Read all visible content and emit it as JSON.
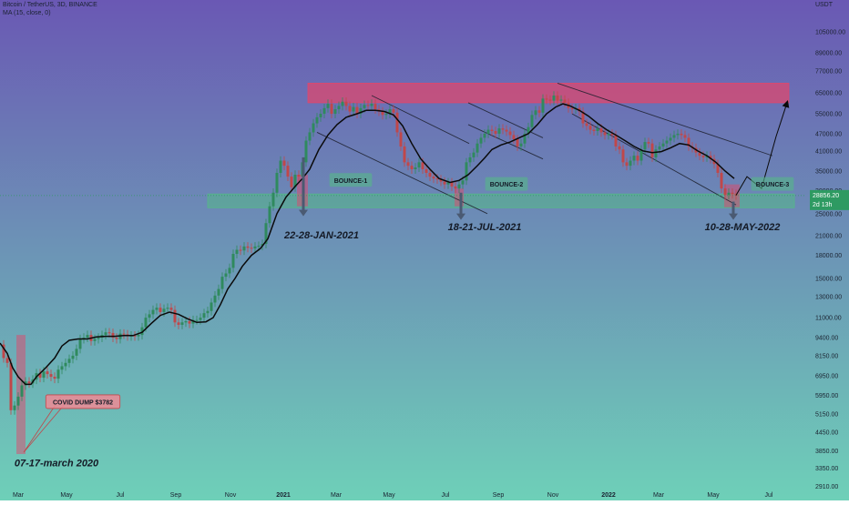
{
  "header": {
    "symbol_line": "Bitcoin / TetherUS, 3D, BINANCE",
    "indicator_line": "MA (15, close, 0)",
    "currency": "USDT"
  },
  "colors": {
    "bg_top": "#6a58b4",
    "bg_bottom": "#6ed0b8",
    "up_candle": "#2f8a5e",
    "down_candle": "#c0474a",
    "ma_line": "#0a0a0a",
    "resistance_zone": "#e0476c",
    "support_zone": "#55b888",
    "price_tag_bg": "#2e9a62",
    "annotation_text": "#141a26"
  },
  "chart_data": {
    "type": "candlestick",
    "yscale": "log",
    "ylim": [
      2600,
      135000
    ],
    "y_ticks": [
      "105000.00",
      "89000.00",
      "77000.00",
      "65000.00",
      "55000.00",
      "47000.00",
      "41000.00",
      "35000.00",
      "30000.00",
      "25000.00",
      "21000.00",
      "18000.00",
      "15000.00",
      "13000.00",
      "11000.00",
      "9400.00",
      "8150.00",
      "6950.00",
      "5950.00",
      "5150.00",
      "4450.00",
      "3850.00",
      "3350.00",
      "2910.00"
    ],
    "x_ticks": [
      "Mar",
      "May",
      "Jul",
      "Sep",
      "Nov",
      "2021",
      "Mar",
      "May",
      "Jul",
      "Sep",
      "Nov",
      "2022",
      "Mar",
      "May",
      "Jul"
    ],
    "price_close": [
      [
        0,
        8900
      ],
      [
        4,
        8000
      ],
      [
        8,
        7700
      ],
      [
        12,
        5300
      ],
      [
        16,
        5500
      ],
      [
        20,
        5900
      ],
      [
        24,
        6450
      ],
      [
        28,
        6650
      ],
      [
        32,
        6550
      ],
      [
        36,
        6750
      ],
      [
        40,
        7100
      ],
      [
        44,
        6850
      ],
      [
        48,
        7200
      ],
      [
        52,
        7050
      ],
      [
        56,
        6900
      ],
      [
        60,
        6800
      ],
      [
        64,
        7300
      ],
      [
        68,
        7500
      ],
      [
        72,
        7700
      ],
      [
        76,
        7950
      ],
      [
        80,
        8150
      ],
      [
        84,
        8600
      ],
      [
        88,
        9300
      ],
      [
        92,
        9400
      ],
      [
        96,
        9600
      ],
      [
        100,
        9150
      ],
      [
        104,
        9300
      ],
      [
        108,
        9400
      ],
      [
        112,
        9600
      ],
      [
        116,
        9800
      ],
      [
        120,
        9750
      ],
      [
        124,
        9400
      ],
      [
        128,
        9300
      ],
      [
        132,
        9700
      ],
      [
        136,
        9650
      ],
      [
        140,
        9500
      ],
      [
        144,
        9550
      ],
      [
        148,
        9500
      ],
      [
        152,
        9600
      ],
      [
        156,
        10200
      ],
      [
        160,
        11000
      ],
      [
        164,
        11300
      ],
      [
        168,
        11700
      ],
      [
        172,
        11900
      ],
      [
        176,
        11500
      ],
      [
        180,
        11800
      ],
      [
        184,
        11900
      ],
      [
        188,
        11700
      ],
      [
        192,
        10600
      ],
      [
        196,
        10400
      ],
      [
        200,
        10600
      ],
      [
        204,
        10700
      ],
      [
        208,
        10500
      ],
      [
        212,
        10800
      ],
      [
        216,
        10800
      ],
      [
        220,
        11000
      ],
      [
        224,
        11400
      ],
      [
        228,
        11600
      ],
      [
        232,
        12400
      ],
      [
        236,
        13100
      ],
      [
        240,
        13800
      ],
      [
        244,
        15200
      ],
      [
        248,
        15600
      ],
      [
        252,
        16300
      ],
      [
        256,
        18200
      ],
      [
        260,
        18800
      ],
      [
        264,
        18700
      ],
      [
        268,
        19300
      ],
      [
        272,
        19100
      ],
      [
        276,
        19000
      ],
      [
        280,
        19300
      ],
      [
        284,
        19400
      ],
      [
        288,
        19700
      ],
      [
        292,
        23200
      ],
      [
        296,
        26500
      ],
      [
        300,
        29500
      ],
      [
        304,
        34500
      ],
      [
        308,
        38000
      ],
      [
        312,
        36500
      ],
      [
        316,
        33500
      ],
      [
        320,
        30800
      ],
      [
        324,
        34000
      ],
      [
        328,
        33500
      ],
      [
        332,
        37500
      ],
      [
        336,
        44500
      ],
      [
        340,
        47500
      ],
      [
        344,
        51000
      ],
      [
        348,
        53500
      ],
      [
        352,
        55000
      ],
      [
        356,
        57500
      ],
      [
        360,
        59500
      ],
      [
        364,
        55000
      ],
      [
        368,
        57000
      ],
      [
        372,
        58500
      ],
      [
        376,
        60500
      ],
      [
        380,
        58500
      ],
      [
        384,
        56000
      ],
      [
        388,
        58000
      ],
      [
        392,
        55000
      ],
      [
        396,
        57500
      ],
      [
        400,
        59000
      ],
      [
        404,
        58500
      ],
      [
        408,
        59500
      ],
      [
        412,
        57000
      ],
      [
        416,
        56000
      ],
      [
        420,
        54500
      ],
      [
        424,
        55000
      ],
      [
        428,
        57000
      ],
      [
        432,
        55500
      ],
      [
        436,
        47500
      ],
      [
        440,
        42500
      ],
      [
        444,
        37500
      ],
      [
        448,
        36500
      ],
      [
        452,
        35500
      ],
      [
        456,
        36000
      ],
      [
        460,
        37500
      ],
      [
        464,
        35500
      ],
      [
        468,
        34500
      ],
      [
        472,
        33500
      ],
      [
        476,
        33000
      ],
      [
        480,
        32800
      ],
      [
        484,
        32200
      ],
      [
        488,
        31500
      ],
      [
        492,
        32000
      ],
      [
        496,
        31000
      ],
      [
        500,
        30500
      ],
      [
        504,
        31500
      ],
      [
        508,
        32500
      ],
      [
        512,
        37500
      ],
      [
        516,
        39000
      ],
      [
        520,
        40500
      ],
      [
        524,
        43500
      ],
      [
        528,
        45500
      ],
      [
        532,
        47000
      ],
      [
        536,
        48500
      ],
      [
        540,
        48000
      ],
      [
        544,
        47000
      ],
      [
        548,
        49000
      ],
      [
        552,
        48500
      ],
      [
        556,
        47800
      ],
      [
        560,
        46500
      ],
      [
        564,
        45000
      ],
      [
        568,
        42500
      ],
      [
        572,
        43500
      ],
      [
        576,
        47000
      ],
      [
        580,
        49500
      ],
      [
        584,
        54500
      ],
      [
        588,
        56500
      ],
      [
        592,
        55500
      ],
      [
        596,
        62000
      ],
      [
        600,
        61500
      ],
      [
        604,
        61000
      ],
      [
        608,
        63500
      ],
      [
        612,
        61000
      ],
      [
        616,
        61500
      ],
      [
        620,
        60000
      ],
      [
        624,
        57500
      ],
      [
        628,
        57000
      ],
      [
        632,
        57500
      ],
      [
        636,
        56000
      ],
      [
        640,
        51000
      ],
      [
        644,
        50000
      ],
      [
        648,
        48500
      ],
      [
        652,
        48000
      ],
      [
        656,
        49000
      ],
      [
        660,
        47500
      ],
      [
        664,
        46500
      ],
      [
        668,
        47000
      ],
      [
        672,
        46500
      ],
      [
        676,
        42500
      ],
      [
        680,
        41500
      ],
      [
        684,
        37500
      ],
      [
        688,
        36500
      ],
      [
        692,
        38000
      ],
      [
        696,
        39500
      ],
      [
        700,
        38000
      ],
      [
        704,
        41500
      ],
      [
        708,
        44000
      ],
      [
        712,
        43500
      ],
      [
        716,
        39000
      ],
      [
        720,
        41500
      ],
      [
        724,
        42500
      ],
      [
        728,
        43500
      ],
      [
        732,
        44500
      ],
      [
        736,
        45500
      ],
      [
        740,
        46500
      ],
      [
        744,
        47000
      ],
      [
        748,
        46500
      ],
      [
        752,
        45500
      ],
      [
        756,
        42500
      ],
      [
        760,
        42000
      ],
      [
        764,
        40500
      ],
      [
        768,
        39500
      ],
      [
        772,
        39000
      ],
      [
        776,
        39500
      ],
      [
        780,
        38500
      ],
      [
        784,
        37000
      ],
      [
        788,
        34500
      ],
      [
        792,
        30500
      ],
      [
        796,
        29000
      ],
      [
        800,
        29500
      ],
      [
        804,
        29200
      ],
      [
        808,
        28900
      ]
    ],
    "ma15": [
      [
        0,
        9000
      ],
      [
        8,
        8300
      ],
      [
        14,
        7400
      ],
      [
        20,
        6900
      ],
      [
        28,
        6500
      ],
      [
        34,
        6500
      ],
      [
        40,
        6900
      ],
      [
        50,
        7400
      ],
      [
        60,
        8000
      ],
      [
        68,
        8800
      ],
      [
        76,
        9200
      ],
      [
        86,
        9300
      ],
      [
        96,
        9300
      ],
      [
        106,
        9450
      ],
      [
        116,
        9500
      ],
      [
        126,
        9500
      ],
      [
        136,
        9550
      ],
      [
        146,
        9550
      ],
      [
        156,
        9800
      ],
      [
        166,
        10500
      ],
      [
        176,
        11200
      ],
      [
        186,
        11500
      ],
      [
        196,
        11300
      ],
      [
        206,
        10900
      ],
      [
        216,
        10600
      ],
      [
        226,
        10650
      ],
      [
        234,
        11000
      ],
      [
        242,
        12200
      ],
      [
        250,
        13800
      ],
      [
        258,
        15000
      ],
      [
        266,
        16500
      ],
      [
        276,
        18000
      ],
      [
        286,
        19000
      ],
      [
        294,
        20500
      ],
      [
        304,
        25000
      ],
      [
        314,
        28500
      ],
      [
        324,
        31000
      ],
      [
        332,
        33000
      ],
      [
        340,
        35500
      ],
      [
        350,
        41500
      ],
      [
        360,
        46500
      ],
      [
        370,
        50500
      ],
      [
        380,
        53500
      ],
      [
        392,
        55000
      ],
      [
        402,
        56500
      ],
      [
        412,
        56500
      ],
      [
        422,
        56000
      ],
      [
        432,
        54500
      ],
      [
        442,
        50000
      ],
      [
        452,
        43500
      ],
      [
        462,
        38500
      ],
      [
        472,
        35500
      ],
      [
        482,
        33000
      ],
      [
        494,
        32000
      ],
      [
        504,
        32500
      ],
      [
        514,
        34000
      ],
      [
        524,
        36500
      ],
      [
        532,
        38800
      ],
      [
        540,
        41500
      ],
      [
        550,
        43000
      ],
      [
        560,
        44000
      ],
      [
        570,
        45500
      ],
      [
        580,
        47000
      ],
      [
        590,
        50500
      ],
      [
        600,
        55000
      ],
      [
        610,
        58000
      ],
      [
        618,
        59500
      ],
      [
        626,
        58500
      ],
      [
        636,
        56500
      ],
      [
        646,
        54000
      ],
      [
        656,
        51000
      ],
      [
        666,
        48500
      ],
      [
        676,
        46500
      ],
      [
        686,
        44500
      ],
      [
        696,
        42500
      ],
      [
        706,
        41000
      ],
      [
        716,
        40500
      ],
      [
        726,
        40800
      ],
      [
        736,
        42000
      ],
      [
        746,
        43500
      ],
      [
        756,
        43000
      ],
      [
        766,
        41000
      ],
      [
        776,
        39500
      ],
      [
        786,
        37500
      ],
      [
        796,
        35000
      ],
      [
        806,
        33000
      ]
    ],
    "projection_arrow": [
      [
        808,
        28900
      ],
      [
        820,
        33500
      ],
      [
        836,
        30500
      ],
      [
        852,
        46000
      ],
      [
        864,
        60000
      ]
    ],
    "zones": [
      {
        "kind": "resistance",
        "x": [
          338,
          866
        ],
        "y": [
          60000,
          70000
        ]
      },
      {
        "kind": "support",
        "x": [
          228,
          872
        ],
        "y": [
          26200,
          29200
        ]
      }
    ],
    "channels": [
      {
        "from": [
          348,
          47500
        ],
        "to": [
          535,
          25000
        ]
      },
      {
        "from": [
          408,
          63500
        ],
        "to": [
          515,
          43500
        ]
      },
      {
        "from": [
          514,
          60000
        ],
        "to": [
          596,
          45500
        ]
      },
      {
        "from": [
          514,
          50500
        ],
        "to": [
          596,
          38500
        ]
      },
      {
        "from": [
          612,
          70000
        ],
        "to": [
          848,
          39500
        ]
      },
      {
        "from": [
          628,
          55000
        ],
        "to": [
          808,
          26800
        ]
      }
    ],
    "highlights": [
      {
        "x": [
          18,
          28
        ],
        "y": [
          3750,
          9600
        ]
      },
      {
        "x": [
          326,
          338
        ],
        "y": [
          26500,
          34000
        ]
      },
      {
        "x": [
          499,
          509
        ],
        "y": [
          26500,
          30500
        ]
      },
      {
        "x": [
          795,
          812
        ],
        "y": [
          26300,
          31500
        ]
      }
    ],
    "down_arrows": [
      {
        "x": 333,
        "y1": 39000,
        "y2": 24500
      },
      {
        "x": 506,
        "y1": 29500,
        "y2": 23800
      },
      {
        "x": 805,
        "y1": 27500,
        "y2": 23800
      }
    ],
    "annotations": [
      {
        "text": "BOUNCE-1",
        "x": 385,
        "y": 32500
      },
      {
        "text": "BOUNCE-2",
        "x": 556,
        "y": 31500
      },
      {
        "text": "BOUNCE-3",
        "x": 848,
        "y": 31500
      },
      {
        "text": "COVID DUMP $3782",
        "x": 91,
        "y": 5650
      },
      {
        "text": "22-28-JAN-2021",
        "x": 353,
        "y": 21200
      },
      {
        "text": "18-21-JUL-2021",
        "x": 532,
        "y": 22600
      },
      {
        "text": "10-28-MAY-2022",
        "x": 815,
        "y": 22600
      },
      {
        "text": "07-17-march 2020",
        "x": 62,
        "y": 3500
      }
    ],
    "last_price": {
      "value": 28856.2,
      "label": "28856.20",
      "countdown": "2d 13h"
    }
  }
}
